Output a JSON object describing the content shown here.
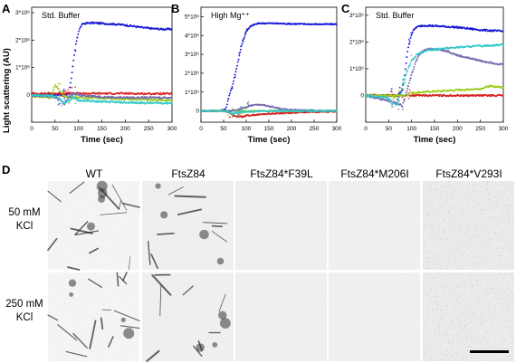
{
  "panel_labels": {
    "a": "A",
    "b": "B",
    "c": "C",
    "d": "D"
  },
  "y_axis_title": "Light scattering (AU)",
  "x_axis_title": "Time (sec)",
  "chart_data": [
    {
      "type": "scatter",
      "panel": "A",
      "title": "Std. Buffer",
      "xlabel": "Time (sec)",
      "ylabel": "Light scattering (AU)",
      "xlim": [
        0,
        300
      ],
      "ylim": [
        -1.0,
        3.2
      ],
      "x_ticks": [
        0,
        50,
        100,
        150,
        200,
        250,
        300
      ],
      "y_ticks": [
        0,
        1,
        2,
        3
      ],
      "y_tick_labels": [
        "0",
        "1*10⁶",
        "2*10⁶",
        "3*10⁶"
      ],
      "series": [
        {
          "color": "#1515d8",
          "x": [
            0,
            30,
            60,
            70,
            80,
            85,
            90,
            95,
            100,
            105,
            110,
            120,
            130,
            140,
            160,
            180,
            200,
            220,
            240,
            260,
            280,
            300
          ],
          "y": [
            0,
            0,
            0,
            -0.05,
            0.1,
            0.6,
            1.3,
            1.9,
            2.3,
            2.5,
            2.6,
            2.62,
            2.63,
            2.62,
            2.6,
            2.58,
            2.55,
            2.5,
            2.45,
            2.42,
            2.4,
            2.4
          ]
        },
        {
          "color": "#d62020",
          "x": [
            0,
            50,
            100,
            150,
            200,
            250,
            300
          ],
          "y": [
            0.05,
            0.05,
            0.05,
            0.05,
            0.05,
            0.04,
            0.04
          ]
        },
        {
          "color": "#9ccc1a",
          "x": [
            0,
            40,
            50,
            60,
            70,
            80,
            100,
            150,
            200,
            250,
            300
          ],
          "y": [
            -0.05,
            -0.1,
            0.35,
            0.15,
            -0.05,
            -0.1,
            -0.1,
            -0.12,
            -0.15,
            -0.18,
            -0.2
          ]
        },
        {
          "color": "#7468b0",
          "x": [
            0,
            40,
            60,
            70,
            80,
            90,
            100,
            130,
            160,
            200,
            250,
            300
          ],
          "y": [
            -0.05,
            -0.05,
            -0.15,
            -0.35,
            -0.1,
            0.05,
            0,
            -0.05,
            -0.08,
            -0.1,
            -0.1,
            -0.1
          ]
        },
        {
          "color": "#30c8c8",
          "x": [
            0,
            50,
            60,
            70,
            80,
            90,
            100,
            120,
            150,
            200,
            250,
            300
          ],
          "y": [
            0,
            -0.05,
            -0.15,
            -0.3,
            -0.2,
            -0.1,
            -0.2,
            -0.22,
            -0.25,
            -0.28,
            -0.3,
            -0.3
          ]
        }
      ]
    },
    {
      "type": "scatter",
      "panel": "B",
      "title": "High Mg⁺⁺",
      "xlabel": "Time (sec)",
      "ylabel": "",
      "xlim": [
        0,
        300
      ],
      "ylim": [
        -0.6,
        5.5
      ],
      "x_ticks": [
        0,
        50,
        100,
        150,
        200,
        250,
        300
      ],
      "y_ticks": [
        0,
        1,
        2,
        3,
        4,
        5
      ],
      "y_tick_labels": [
        "0",
        "1*10⁶",
        "2*10⁶",
        "3*10⁶",
        "4*10⁶",
        "5*10⁶"
      ],
      "series": [
        {
          "color": "#1515d8",
          "x": [
            0,
            40,
            50,
            55,
            60,
            65,
            70,
            80,
            90,
            100,
            110,
            120,
            130,
            150,
            200,
            250,
            300
          ],
          "y": [
            0,
            0,
            0.05,
            0.1,
            0.6,
            1.0,
            1.4,
            2.4,
            3.5,
            4.2,
            4.5,
            4.6,
            4.65,
            4.65,
            4.62,
            4.6,
            4.6
          ]
        },
        {
          "color": "#d62020",
          "x": [
            0,
            50,
            60,
            70,
            80,
            90,
            100,
            150,
            200,
            250,
            300
          ],
          "y": [
            0,
            0,
            -0.05,
            -0.2,
            -0.3,
            -0.3,
            -0.25,
            -0.15,
            -0.1,
            -0.05,
            -0.05
          ]
        },
        {
          "color": "#9ccc1a",
          "x": [
            0,
            50,
            100,
            150,
            200,
            250,
            300
          ],
          "y": [
            0,
            0,
            0,
            0,
            0,
            0,
            0
          ]
        },
        {
          "color": "#7468b0",
          "x": [
            0,
            60,
            80,
            100,
            120,
            140,
            160,
            180,
            200,
            250,
            300
          ],
          "y": [
            0,
            0,
            0.05,
            0.2,
            0.35,
            0.3,
            0.2,
            0.1,
            0.05,
            0.02,
            0
          ]
        },
        {
          "color": "#30c8c8",
          "x": [
            0,
            50,
            60,
            70,
            80,
            90,
            100,
            150,
            200,
            250,
            300
          ],
          "y": [
            0,
            0,
            -0.05,
            -0.15,
            -0.1,
            -0.05,
            -0.05,
            0,
            0,
            0,
            0
          ]
        }
      ]
    },
    {
      "type": "scatter",
      "panel": "C",
      "title": "Std. Buffer",
      "xlabel": "Time (sec)",
      "ylabel": "",
      "xlim": [
        0,
        300
      ],
      "ylim": [
        -1.0,
        3.3
      ],
      "x_ticks": [
        0,
        50,
        100,
        150,
        200,
        250,
        300
      ],
      "y_ticks": [
        0,
        1,
        2,
        3
      ],
      "y_tick_labels": [
        "0",
        "1*10⁶",
        "2*10⁶",
        "3*10⁶"
      ],
      "series": [
        {
          "color": "#1515d8",
          "x": [
            0,
            70,
            80,
            85,
            90,
            95,
            100,
            105,
            110,
            120,
            130,
            150,
            200,
            250,
            300
          ],
          "y": [
            0,
            0,
            0.2,
            0.8,
            1.5,
            2.0,
            2.3,
            2.45,
            2.55,
            2.6,
            2.62,
            2.6,
            2.55,
            2.45,
            2.4
          ]
        },
        {
          "color": "#d62020",
          "x": [
            0,
            50,
            100,
            150,
            200,
            250,
            300
          ],
          "y": [
            0,
            0,
            0,
            0,
            0,
            0,
            0
          ]
        },
        {
          "color": "#9ccc1a",
          "x": [
            0,
            70,
            80,
            90,
            100,
            150,
            200,
            250,
            270,
            300
          ],
          "y": [
            0,
            0,
            0,
            0,
            0.1,
            0.15,
            0.2,
            0.25,
            0.35,
            0.3
          ]
        },
        {
          "color": "#7468b0",
          "x": [
            0,
            70,
            80,
            90,
            100,
            110,
            120,
            130,
            140,
            160,
            180,
            200,
            250,
            300
          ],
          "y": [
            0,
            -0.3,
            -0.4,
            0.2,
            0.8,
            1.3,
            1.6,
            1.7,
            1.75,
            1.72,
            1.65,
            1.5,
            1.3,
            1.15
          ]
        },
        {
          "color": "#30c8c8",
          "x": [
            0,
            50,
            60,
            70,
            80,
            90,
            100,
            110,
            120,
            140,
            160,
            200,
            250,
            300
          ],
          "y": [
            0,
            -0.1,
            -0.3,
            -0.35,
            0.4,
            0.9,
            1.3,
            1.5,
            1.6,
            1.7,
            1.75,
            1.8,
            1.85,
            1.9
          ]
        }
      ]
    }
  ],
  "micrographs": {
    "columns": [
      "WT",
      "FtsZ84",
      "FtsZ84*F39L",
      "FtsZ84*M206I",
      "FtsZ84*V293I"
    ],
    "rows": [
      {
        "line1": "50 mM",
        "line2": "KCl"
      },
      {
        "line1": "250 mM",
        "line2": "KCl"
      }
    ]
  }
}
